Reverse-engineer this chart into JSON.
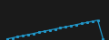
{
  "background_color": "#ffffff",
  "fig_background_color": "#1a1a1a",
  "line_color": "#2196c8",
  "marker_style": "s",
  "marker_size": 1.2,
  "line_width": 0.9,
  "x": [
    0,
    1,
    2,
    3,
    4,
    5,
    6,
    7,
    8,
    9,
    10,
    11,
    12,
    13,
    14,
    15,
    16,
    17,
    18
  ],
  "y": [
    1,
    2,
    3,
    4,
    5,
    6,
    7,
    8,
    9,
    10,
    11,
    12,
    13,
    14,
    15,
    16,
    17,
    18,
    1
  ],
  "xlim": [
    -0.5,
    18.5
  ],
  "ylim": [
    0,
    20
  ]
}
